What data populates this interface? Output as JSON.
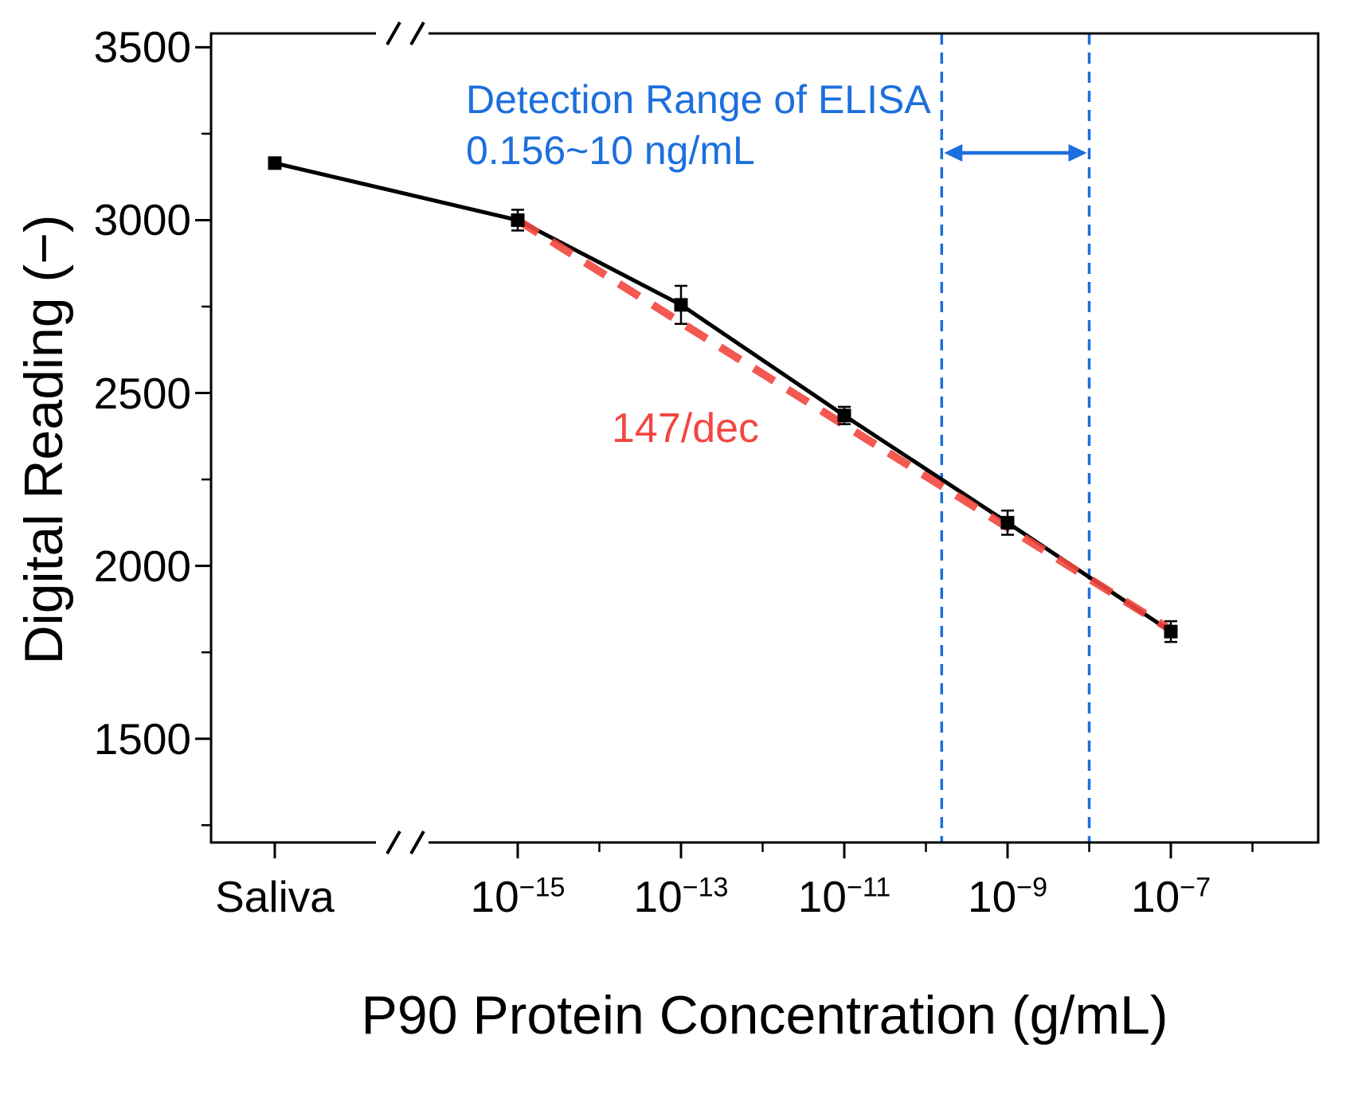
{
  "chart_data": {
    "type": "line",
    "title": "",
    "xlabel": "P90 Protein Concentration (g/mL)",
    "ylabel": "Digital Reading (−)",
    "x_categories": [
      {
        "label": "Saliva"
      },
      {
        "base": "10",
        "exp": "−15"
      },
      {
        "base": "10",
        "exp": "−13"
      },
      {
        "base": "10",
        "exp": "−11"
      },
      {
        "base": "10",
        "exp": "−9"
      },
      {
        "base": "10",
        "exp": "−7"
      }
    ],
    "series": [
      {
        "name": "digital-reading",
        "color": "#000000",
        "marker": "square",
        "values": [
          3165,
          3000,
          2755,
          2435,
          2125,
          1810
        ],
        "errors": [
          15,
          30,
          55,
          25,
          35,
          30
        ]
      }
    ],
    "fit": {
      "label": "147/dec",
      "color": "#F2473F",
      "from_exponent": -15,
      "to_exponent": -7,
      "from_value": 3000,
      "to_value": 1815,
      "slope_per_decade": 147
    },
    "yticks": [
      "1500",
      "2000",
      "2500",
      "3000",
      "3500"
    ],
    "ylim": [
      1200,
      3540
    ],
    "y_minor_values": [
      1250,
      1750,
      2250,
      2750,
      3250
    ],
    "x_minor_exponents": [
      -14,
      -12,
      -10,
      -8,
      -6
    ],
    "annotations": {
      "detection_title": "Detection Range of ELISA",
      "detection_range_text": "0.156~10 ng/mL",
      "range_ng_per_ml": [
        0.156,
        10
      ],
      "accent_blue": "#1C6FDD"
    },
    "axis_break": true,
    "grid": false,
    "legend": "none"
  }
}
